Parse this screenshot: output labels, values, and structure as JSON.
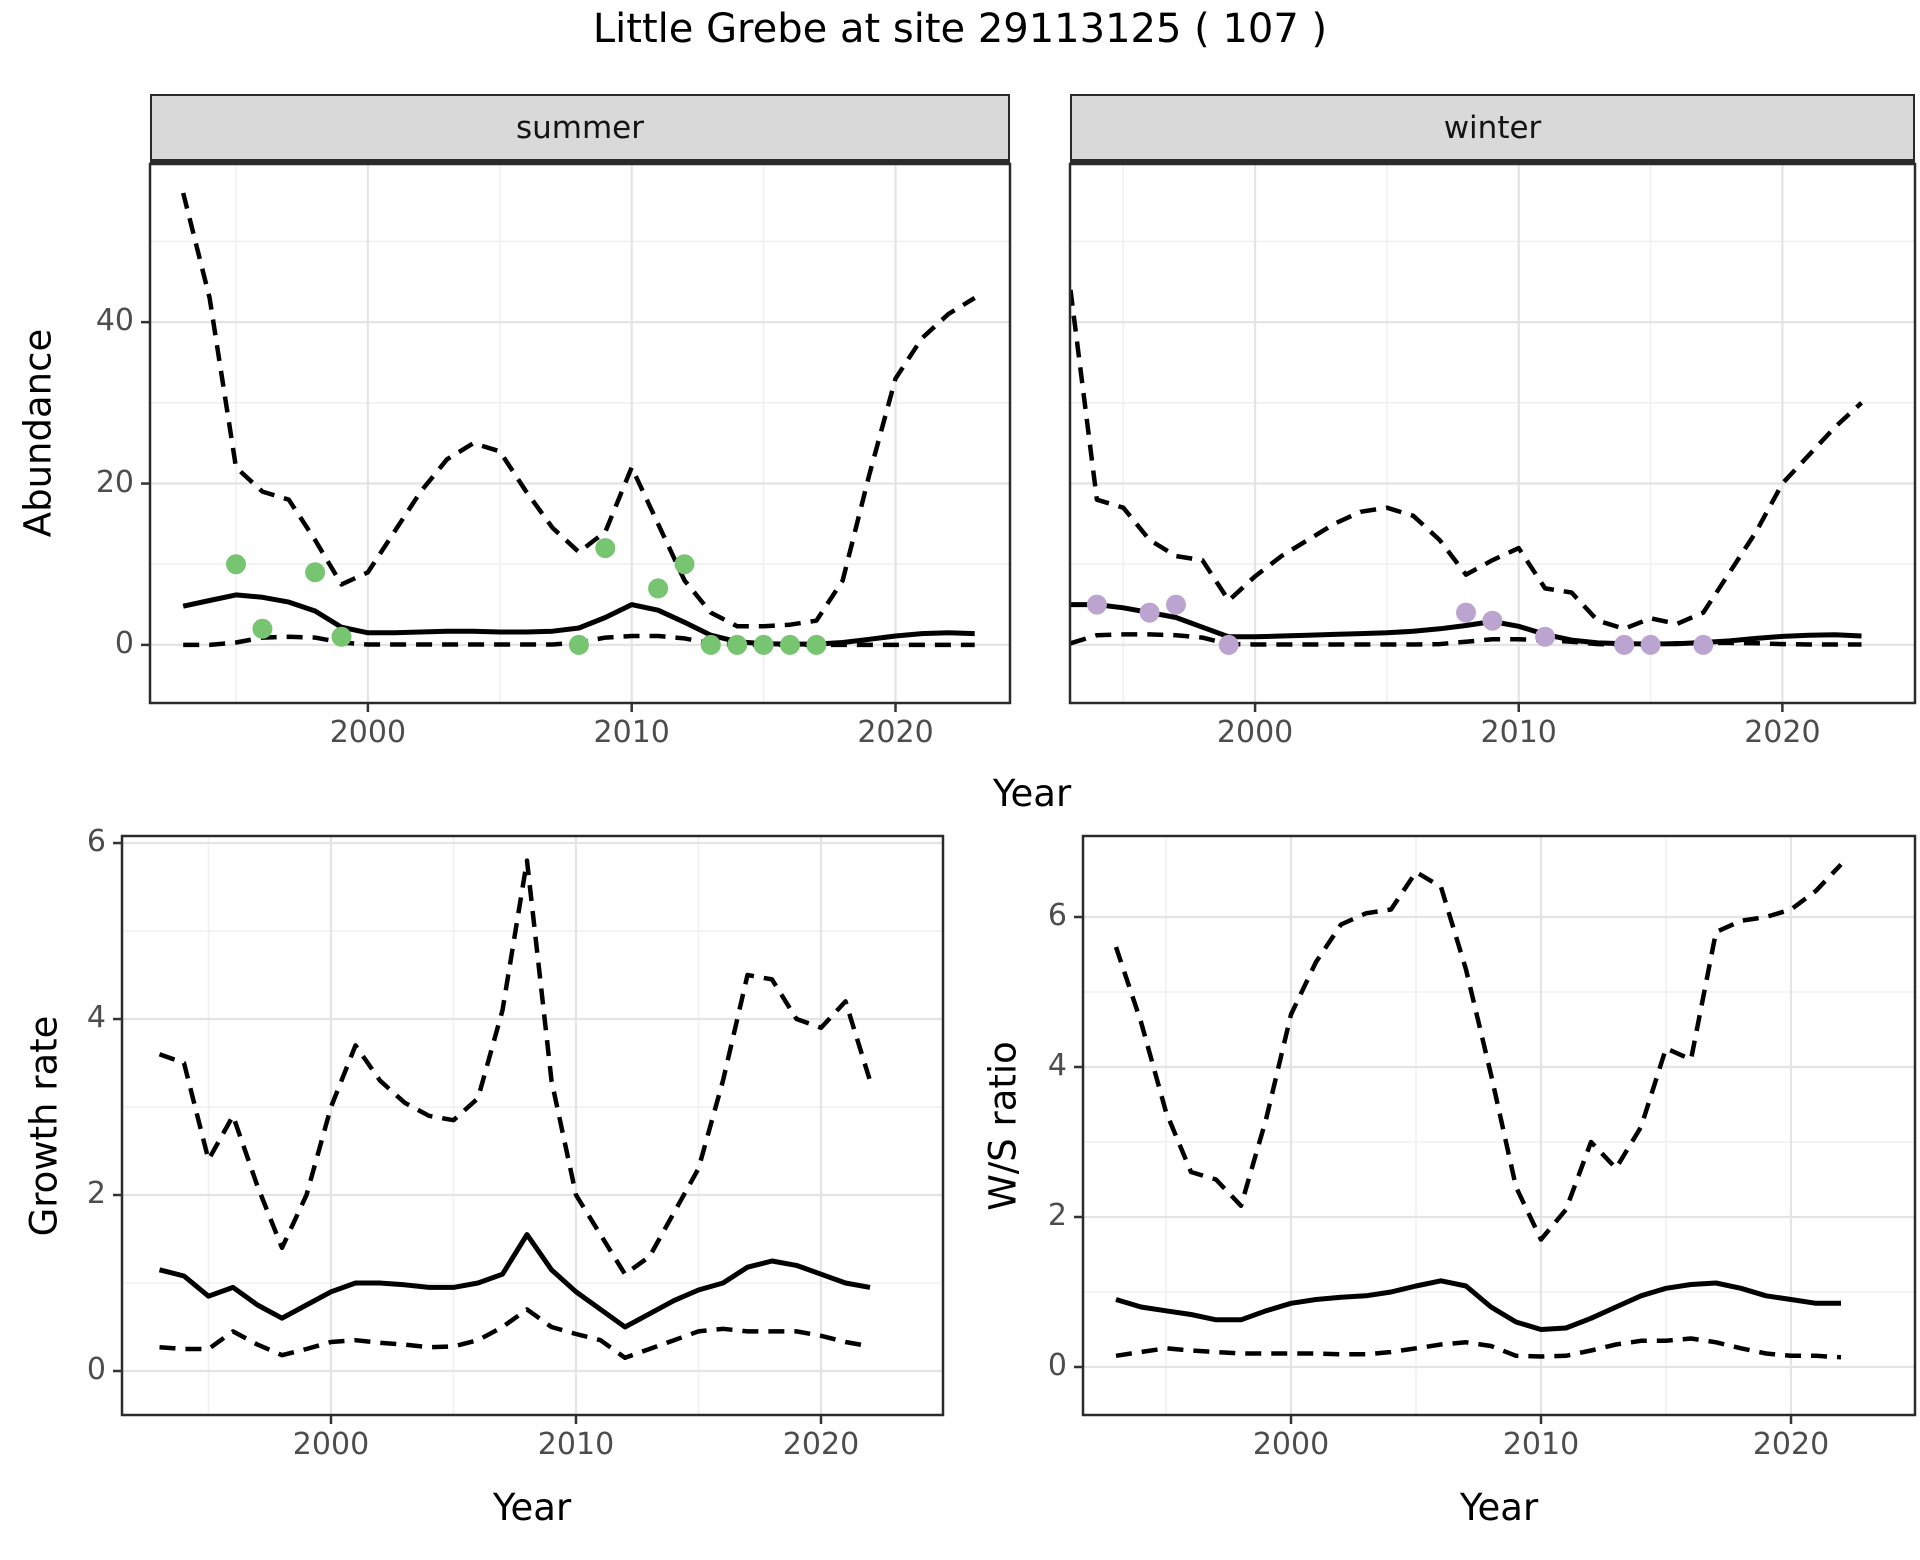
{
  "title": "Little Grebe at site 29113125 ( 107 )",
  "style_colors": {
    "strip_background": "#d9d9d9",
    "panel_border": "#2b2b2b",
    "grid_major": "#e4e4e4",
    "grid_minor": "#f0f0f0",
    "line": "#000000",
    "tick_text": "#4d4d4d",
    "summer_points": "#77c471",
    "winter_points": "#bca4d0"
  },
  "chart_data": [
    {
      "id": "abundance-summer",
      "type": "line",
      "facet_label": "summer",
      "ylabel": "Abundance",
      "xlabel": "Year",
      "x_ticks": [
        2000,
        2010,
        2020
      ],
      "x_minor": [
        1995,
        2005,
        2015,
        2025
      ],
      "y_ticks": [
        0,
        20,
        40
      ],
      "y_minor": [
        10,
        30,
        50
      ],
      "xlim": [
        1991.74,
        2024.34
      ],
      "ylim": [
        -7.2,
        59.6
      ],
      "grid": true,
      "legend": "none",
      "x": [
        1993,
        1994,
        1995,
        1996,
        1997,
        1998,
        1999,
        2000,
        2001,
        2002,
        2003,
        2004,
        2005,
        2006,
        2007,
        2008,
        2009,
        2010,
        2011,
        2012,
        2013,
        2014,
        2015,
        2016,
        2017,
        2018,
        2019,
        2020,
        2021,
        2022,
        2023
      ],
      "series": [
        {
          "name": "upper-ci",
          "linetype": "dashed",
          "values": [
            56,
            43,
            22,
            19,
            18,
            13,
            7.5,
            9,
            14,
            19,
            23,
            25,
            24,
            19,
            14.5,
            11.5,
            14,
            22,
            15,
            8,
            4,
            2.3,
            2.3,
            2.5,
            3,
            8,
            21,
            33,
            38,
            41,
            43
          ]
        },
        {
          "name": "mean",
          "linetype": "solid",
          "values": [
            4.8,
            5.5,
            6.2,
            5.9,
            5.3,
            4.2,
            2.2,
            1.5,
            1.5,
            1.6,
            1.7,
            1.7,
            1.6,
            1.6,
            1.7,
            2.1,
            3.4,
            5.0,
            4.3,
            2.8,
            1.2,
            0.4,
            0.15,
            0.1,
            0.1,
            0.3,
            0.7,
            1.1,
            1.4,
            1.5,
            1.4
          ]
        },
        {
          "name": "lower-ci",
          "linetype": "dashed",
          "values": [
            0,
            0,
            0.3,
            0.9,
            1.0,
            0.9,
            0.3,
            0.05,
            0.05,
            0.05,
            0.05,
            0.05,
            0.05,
            0.05,
            0.05,
            0.3,
            0.9,
            1.1,
            1.1,
            0.8,
            0.2,
            0,
            0,
            0,
            0,
            0,
            0,
            0,
            0,
            0,
            0
          ]
        }
      ],
      "points": {
        "name": "summer-observations",
        "color": "#77c471",
        "data": [
          [
            1995,
            10
          ],
          [
            1996,
            2
          ],
          [
            1998,
            9
          ],
          [
            1999,
            1
          ],
          [
            2008,
            0
          ],
          [
            2009,
            12
          ],
          [
            2011,
            7
          ],
          [
            2012,
            10
          ],
          [
            2013,
            0
          ],
          [
            2014,
            0
          ],
          [
            2015,
            0
          ],
          [
            2016,
            0
          ],
          [
            2017,
            0
          ]
        ]
      }
    },
    {
      "id": "abundance-winter",
      "type": "line",
      "facet_label": "winter",
      "ylabel": "Abundance",
      "xlabel": "Year",
      "x_ticks": [
        2000,
        2010,
        2020
      ],
      "x_minor": [
        1995,
        2005,
        2015,
        2025
      ],
      "y_ticks": [
        0,
        20,
        40
      ],
      "y_minor": [
        10,
        30,
        50
      ],
      "xlim": [
        1992.98,
        2025.03
      ],
      "ylim": [
        -7.2,
        59.6
      ],
      "grid": true,
      "legend": "none",
      "x": [
        1993,
        1994,
        1995,
        1996,
        1997,
        1998,
        1999,
        2000,
        2001,
        2002,
        2003,
        2004,
        2005,
        2006,
        2007,
        2008,
        2009,
        2010,
        2011,
        2012,
        2013,
        2014,
        2015,
        2016,
        2017,
        2018,
        2019,
        2020,
        2021,
        2022,
        2023
      ],
      "series": [
        {
          "name": "upper-ci",
          "linetype": "dashed",
          "values": [
            44,
            18,
            17,
            13,
            11,
            10.5,
            5.5,
            8.5,
            11,
            13,
            15,
            16.5,
            17,
            16,
            13,
            8.7,
            10.5,
            12,
            7,
            6.5,
            3,
            2,
            3.3,
            2.6,
            4,
            9,
            14,
            20,
            23.5,
            27,
            30
          ]
        },
        {
          "name": "mean",
          "linetype": "solid",
          "values": [
            5.0,
            5.0,
            4.6,
            4.0,
            3.4,
            2.2,
            1.0,
            1.0,
            1.1,
            1.2,
            1.3,
            1.4,
            1.5,
            1.7,
            2.0,
            2.4,
            2.9,
            2.3,
            1.3,
            0.6,
            0.25,
            0.15,
            0.12,
            0.15,
            0.3,
            0.5,
            0.8,
            1.05,
            1.2,
            1.25,
            1.1
          ]
        },
        {
          "name": "lower-ci",
          "linetype": "dashed",
          "values": [
            0.2,
            1.2,
            1.3,
            1.3,
            1.2,
            0.9,
            0.1,
            0.05,
            0.05,
            0.05,
            0.05,
            0.05,
            0.05,
            0.05,
            0.1,
            0.4,
            0.7,
            0.7,
            0.6,
            0.4,
            0.1,
            0.05,
            0.05,
            0.2,
            0.25,
            0.25,
            0.2,
            0.1,
            0.05,
            0.05,
            0.05
          ]
        }
      ],
      "points": {
        "name": "winter-observations",
        "color": "#bca4d0",
        "data": [
          [
            1994,
            5
          ],
          [
            1996,
            4
          ],
          [
            1997,
            5
          ],
          [
            1999,
            0
          ],
          [
            2008,
            4
          ],
          [
            2009,
            3
          ],
          [
            2011,
            1
          ],
          [
            2014,
            0
          ],
          [
            2015,
            0
          ],
          [
            2017,
            0
          ]
        ]
      }
    },
    {
      "id": "growth-rate",
      "type": "line",
      "facet_label": "",
      "ylabel": "Growth rate",
      "xlabel": "Year",
      "x_ticks": [
        2000,
        2010,
        2020
      ],
      "x_minor": [
        1995,
        2005,
        2015,
        2025
      ],
      "y_ticks": [
        0,
        2,
        4,
        6
      ],
      "y_minor": [
        1,
        3,
        5
      ],
      "xlim": [
        1991.47,
        2024.98
      ],
      "ylim": [
        -0.5,
        6.08
      ],
      "grid": true,
      "legend": "none",
      "x": [
        1993,
        1994,
        1995,
        1996,
        1997,
        1998,
        1999,
        2000,
        2001,
        2002,
        2003,
        2004,
        2005,
        2006,
        2007,
        2008,
        2009,
        2010,
        2011,
        2012,
        2013,
        2014,
        2015,
        2016,
        2017,
        2018,
        2019,
        2020,
        2021,
        2022
      ],
      "series": [
        {
          "name": "upper-ci",
          "linetype": "dashed",
          "values": [
            3.6,
            3.5,
            2.4,
            2.9,
            2.1,
            1.4,
            2.0,
            3.0,
            3.7,
            3.3,
            3.05,
            2.9,
            2.85,
            3.1,
            4.1,
            5.8,
            3.3,
            2.0,
            1.55,
            1.1,
            1.3,
            1.8,
            2.3,
            3.3,
            4.5,
            4.45,
            4.0,
            3.9,
            4.2,
            3.3
          ]
        },
        {
          "name": "mean",
          "linetype": "solid",
          "values": [
            1.15,
            1.08,
            0.85,
            0.95,
            0.75,
            0.6,
            0.75,
            0.9,
            1.0,
            1.0,
            0.98,
            0.95,
            0.95,
            1.0,
            1.1,
            1.55,
            1.15,
            0.9,
            0.7,
            0.5,
            0.65,
            0.8,
            0.92,
            1.0,
            1.18,
            1.25,
            1.2,
            1.1,
            1.0,
            0.95
          ]
        },
        {
          "name": "lower-ci",
          "linetype": "dashed",
          "values": [
            0.27,
            0.25,
            0.25,
            0.45,
            0.3,
            0.18,
            0.25,
            0.33,
            0.35,
            0.32,
            0.3,
            0.27,
            0.28,
            0.35,
            0.5,
            0.7,
            0.5,
            0.42,
            0.35,
            0.15,
            0.25,
            0.35,
            0.45,
            0.48,
            0.45,
            0.45,
            0.45,
            0.4,
            0.33,
            0.28
          ]
        }
      ],
      "points": {
        "name": "none",
        "color": "#000000",
        "data": []
      }
    },
    {
      "id": "ws-ratio",
      "type": "line",
      "facet_label": "",
      "ylabel": "W/S ratio",
      "xlabel": "Year",
      "x_ticks": [
        2000,
        2010,
        2020
      ],
      "x_minor": [
        1995,
        2005,
        2015,
        2025
      ],
      "y_ticks": [
        0,
        2,
        4,
        6
      ],
      "y_minor": [
        1,
        3,
        5
      ],
      "xlim": [
        1991.68,
        2024.96
      ],
      "ylim": [
        -0.64,
        7.08
      ],
      "grid": true,
      "legend": "none",
      "x": [
        1993,
        1994,
        1995,
        1996,
        1997,
        1998,
        1999,
        2000,
        2001,
        2002,
        2003,
        2004,
        2005,
        2006,
        2007,
        2008,
        2009,
        2010,
        2011,
        2012,
        2013,
        2014,
        2015,
        2016,
        2017,
        2018,
        2019,
        2020,
        2021,
        2022
      ],
      "series": [
        {
          "name": "upper-ci",
          "linetype": "dashed",
          "values": [
            5.6,
            4.6,
            3.4,
            2.6,
            2.5,
            2.15,
            3.3,
            4.7,
            5.4,
            5.9,
            6.05,
            6.1,
            6.6,
            6.4,
            5.3,
            3.9,
            2.4,
            1.7,
            2.1,
            3.0,
            2.65,
            3.2,
            4.25,
            4.1,
            5.8,
            5.95,
            6.0,
            6.1,
            6.35,
            6.7
          ]
        },
        {
          "name": "mean",
          "linetype": "solid",
          "values": [
            0.9,
            0.8,
            0.75,
            0.7,
            0.63,
            0.63,
            0.75,
            0.85,
            0.9,
            0.93,
            0.95,
            1.0,
            1.08,
            1.15,
            1.08,
            0.8,
            0.6,
            0.5,
            0.52,
            0.65,
            0.8,
            0.95,
            1.05,
            1.1,
            1.12,
            1.05,
            0.95,
            0.9,
            0.85,
            0.85
          ]
        },
        {
          "name": "lower-ci",
          "linetype": "dashed",
          "values": [
            0.15,
            0.2,
            0.25,
            0.22,
            0.2,
            0.18,
            0.18,
            0.18,
            0.18,
            0.17,
            0.17,
            0.2,
            0.25,
            0.3,
            0.33,
            0.28,
            0.15,
            0.14,
            0.15,
            0.22,
            0.3,
            0.35,
            0.35,
            0.38,
            0.33,
            0.25,
            0.18,
            0.15,
            0.15,
            0.13
          ]
        }
      ],
      "points": {
        "name": "none",
        "color": "#000000",
        "data": []
      }
    }
  ]
}
